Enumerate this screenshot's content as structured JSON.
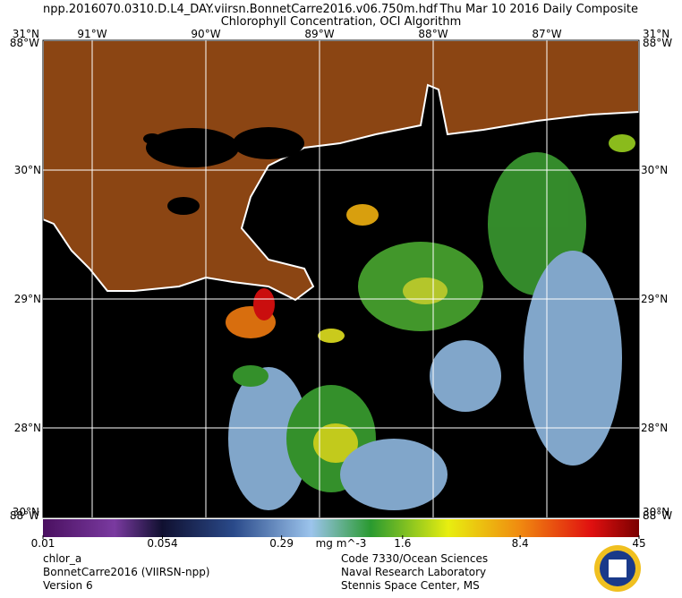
{
  "header": {
    "file": "npp.2016070.0310.D.L4_DAY.viirsn.BonnetCarre2016.v06.750m.hdf",
    "date": "Thu Mar 10 2016 Daily Composite",
    "title": "Chlorophyll Concentration, OCI Algorithm"
  },
  "map": {
    "longitudes": [
      {
        "value": -91,
        "label": "91°W"
      },
      {
        "value": -90,
        "label": "90°W"
      },
      {
        "value": -89,
        "label": "89°W"
      },
      {
        "value": -88,
        "label": "88°W"
      },
      {
        "value": -87,
        "label": "87°W"
      }
    ],
    "latitudes": [
      {
        "value": 30,
        "label": "30°N"
      },
      {
        "value": 29,
        "label": "29°N"
      },
      {
        "value": 28,
        "label": "28°N"
      }
    ],
    "corner_labels": [
      "31°N",
      "88°W",
      "31°N",
      "88°W",
      "30°N",
      "88°W",
      "30°N",
      "88°W"
    ]
  },
  "colorbar": {
    "log": true,
    "range": [
      0.01,
      45
    ],
    "ticks": [
      0.01,
      0.054,
      0.29,
      1.6,
      8.4,
      45
    ],
    "unit": "mg m^-3"
  },
  "footer": {
    "left": [
      "chlor_a",
      "BonnetCarre2016 (VIIRSN-npp)",
      "Version 6"
    ],
    "right": [
      "Code 7330/Ocean Sciences",
      "Naval Research Laboratory",
      "Stennis Space Center, MS"
    ]
  }
}
